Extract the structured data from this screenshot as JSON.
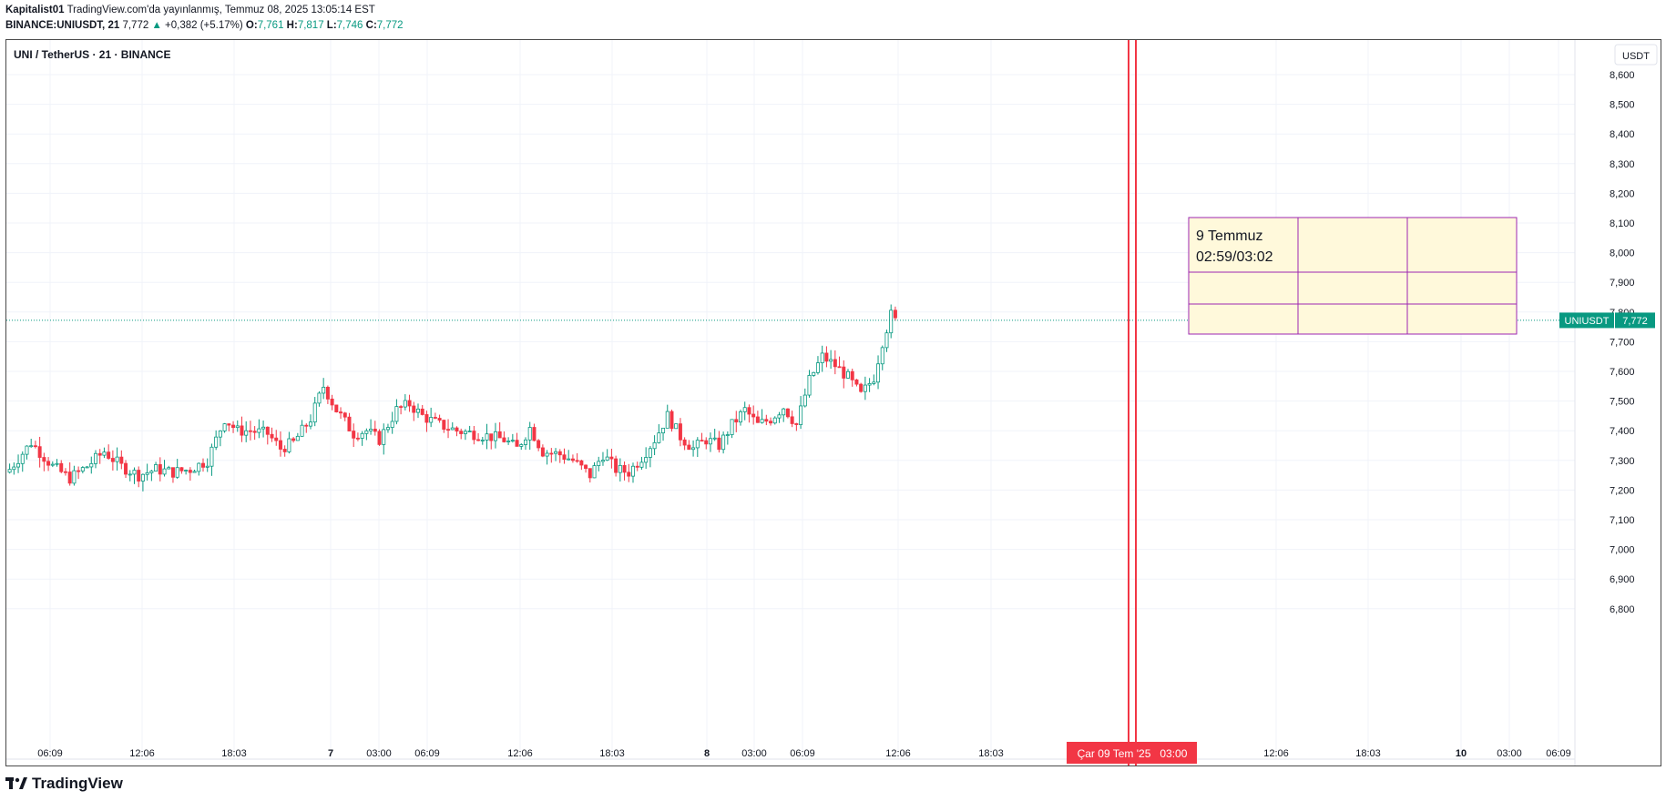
{
  "header": {
    "author": "Kapitalist01",
    "published": "TradingView.com'da yayınlanmış, Temmuz 08, 2025 13:05:14 EST",
    "symbol_line": "BINANCE:UNIUSDT, 21",
    "last": "7,772",
    "change": "+0,382 (+5.17%)",
    "o_label": "O:",
    "o": "7,761",
    "h_label": "H:",
    "h": "7,817",
    "l_label": "L:",
    "l": "7,746",
    "c_label": "C:",
    "c": "7,772"
  },
  "legend_title": "UNI / TetherUS · 21 · BINANCE",
  "currency_label": "USDT",
  "price_label": {
    "symbol": "UNIUSDT",
    "value": "7,772"
  },
  "highlighted_date": "Çar 09 Tem '25   03:00",
  "note_box": {
    "line1": "9 Temmuz",
    "line2": "02:59/03:02"
  },
  "footer": {
    "brand": "TradingView"
  },
  "colors": {
    "up": "#089981",
    "down": "#f23645",
    "marker": "#f23645",
    "note_bg": "#fff9db",
    "note_border": "#9c27b0"
  },
  "chart_data": {
    "type": "candlestick",
    "yticks": [
      "8,600",
      "8,500",
      "8,400",
      "8,300",
      "8,200",
      "8,100",
      "8,000",
      "7,900",
      "7,800",
      "7,700",
      "7,600",
      "7,500",
      "7,400",
      "7,300",
      "7,200",
      "7,100",
      "7,000",
      "6,900",
      "6,800"
    ],
    "ylim": [
      6.72,
      8.68
    ],
    "xticks": [
      "06:09",
      "12:06",
      "18:03",
      "7",
      "03:00",
      "06:09",
      "12:06",
      "18:03",
      "8",
      "03:00",
      "06:09",
      "12:06",
      "18:03",
      "12:06",
      "18:03",
      "10",
      "03:00",
      "06:09"
    ],
    "grid": true,
    "last_price": 7.772,
    "close_path": [
      [
        0,
        7.27
      ],
      [
        5,
        7.36
      ],
      [
        10,
        7.28
      ],
      [
        14,
        7.24
      ],
      [
        18,
        7.28
      ],
      [
        22,
        7.33
      ],
      [
        26,
        7.28
      ],
      [
        30,
        7.25
      ],
      [
        34,
        7.27
      ],
      [
        38,
        7.26
      ],
      [
        42,
        7.27
      ],
      [
        46,
        7.3
      ],
      [
        50,
        7.44
      ],
      [
        53,
        7.4
      ],
      [
        56,
        7.4
      ],
      [
        60,
        7.39
      ],
      [
        63,
        7.34
      ],
      [
        66,
        7.36
      ],
      [
        70,
        7.44
      ],
      [
        73,
        7.55
      ],
      [
        76,
        7.47
      ],
      [
        80,
        7.39
      ],
      [
        83,
        7.4
      ],
      [
        86,
        7.37
      ],
      [
        90,
        7.47
      ],
      [
        93,
        7.49
      ],
      [
        96,
        7.45
      ],
      [
        100,
        7.42
      ],
      [
        104,
        7.4
      ],
      [
        108,
        7.39
      ],
      [
        112,
        7.38
      ],
      [
        115,
        7.37
      ],
      [
        118,
        7.34
      ],
      [
        121,
        7.41
      ],
      [
        124,
        7.33
      ],
      [
        128,
        7.32
      ],
      [
        131,
        7.3
      ],
      [
        135,
        7.25
      ],
      [
        138,
        7.32
      ],
      [
        141,
        7.27
      ],
      [
        144,
        7.26
      ],
      [
        147,
        7.31
      ],
      [
        150,
        7.37
      ],
      [
        153,
        7.45
      ],
      [
        156,
        7.38
      ],
      [
        159,
        7.34
      ],
      [
        162,
        7.37
      ],
      [
        165,
        7.35
      ],
      [
        168,
        7.42
      ],
      [
        171,
        7.47
      ],
      [
        174,
        7.42
      ],
      [
        177,
        7.44
      ],
      [
        180,
        7.48
      ],
      [
        183,
        7.42
      ],
      [
        186,
        7.57
      ],
      [
        189,
        7.65
      ],
      [
        192,
        7.62
      ],
      [
        195,
        7.58
      ],
      [
        198,
        7.52
      ],
      [
        201,
        7.58
      ],
      [
        203,
        7.7
      ],
      [
        205,
        7.79
      ],
      [
        206,
        7.77
      ]
    ]
  }
}
